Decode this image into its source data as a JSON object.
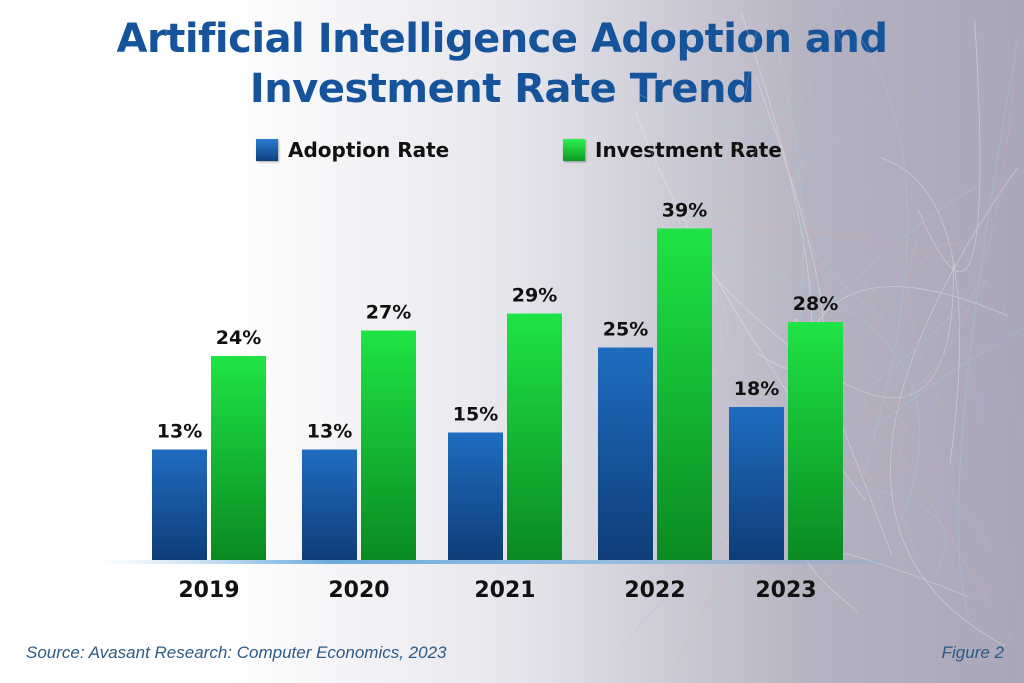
{
  "chart_data": {
    "type": "bar",
    "title": "Artificial Intelligence Adoption and Investment Rate Trend",
    "categories": [
      "2019",
      "2020",
      "2021",
      "2022",
      "2023"
    ],
    "series": [
      {
        "name": "Adoption Rate",
        "values": [
          13,
          13,
          15,
          25,
          18
        ],
        "color": "#1a5ea8"
      },
      {
        "name": "Investment Rate",
        "values": [
          24,
          27,
          29,
          39,
          28
        ],
        "color": "#18c83a"
      }
    ],
    "value_suffix": "%",
    "legend_position": "top",
    "grid": false,
    "xlabel": "",
    "ylabel": ""
  },
  "footer": {
    "source": "Source: Avasant Research: Computer Economics, 2023",
    "figure": "Figure 2"
  }
}
